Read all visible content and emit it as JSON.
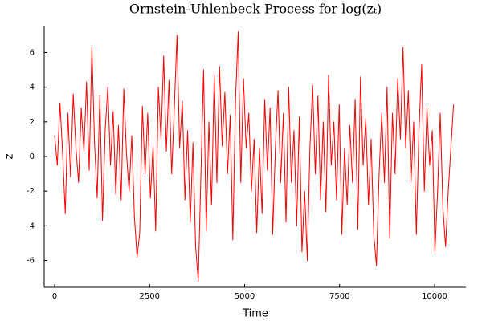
{
  "chart_data": {
    "type": "line",
    "title": "Ornstein-Uhlenbeck Process for log(zₜ)",
    "x_label": "Time",
    "y_label": "z",
    "x": [
      0,
      70,
      140,
      210,
      280,
      350,
      420,
      490,
      560,
      630,
      700,
      770,
      840,
      910,
      980,
      1050,
      1120,
      1190,
      1260,
      1330,
      1400,
      1470,
      1540,
      1610,
      1680,
      1750,
      1820,
      1890,
      1960,
      2030,
      2100,
      2170,
      2240,
      2310,
      2380,
      2450,
      2520,
      2590,
      2660,
      2730,
      2800,
      2870,
      2940,
      3010,
      3080,
      3150,
      3220,
      3290,
      3360,
      3430,
      3500,
      3570,
      3640,
      3710,
      3780,
      3850,
      3920,
      3990,
      4060,
      4130,
      4200,
      4270,
      4340,
      4410,
      4480,
      4550,
      4620,
      4690,
      4760,
      4830,
      4900,
      4970,
      5040,
      5110,
      5180,
      5250,
      5320,
      5390,
      5460,
      5530,
      5600,
      5670,
      5740,
      5810,
      5880,
      5950,
      6020,
      6090,
      6160,
      6230,
      6300,
      6370,
      6440,
      6510,
      6580,
      6650,
      6720,
      6790,
      6860,
      6930,
      7000,
      7070,
      7140,
      7210,
      7280,
      7350,
      7420,
      7490,
      7560,
      7630,
      7700,
      7770,
      7840,
      7910,
      7980,
      8050,
      8120,
      8190,
      8260,
      8330,
      8400,
      8470,
      8540,
      8610,
      8680,
      8750,
      8820,
      8890,
      8960,
      9030,
      9100,
      9170,
      9240,
      9310,
      9380,
      9450,
      9520,
      9590,
      9660,
      9730,
      9800,
      9870,
      9940,
      10010,
      10080,
      10150,
      10220,
      10290,
      10360,
      10430,
      10500
    ],
    "series": [
      {
        "name": "z",
        "color": "#ff0000",
        "values": [
          1.2,
          -0.5,
          3.1,
          0.2,
          -3.3,
          2.5,
          -1.2,
          3.6,
          0.5,
          -1.5,
          2.8,
          0.3,
          4.3,
          -0.8,
          6.3,
          0.8,
          -2.4,
          3.5,
          -3.7,
          1.5,
          4.0,
          -0.5,
          2.6,
          -2.2,
          1.8,
          -2.5,
          3.9,
          0.2,
          -2.0,
          1.2,
          -3.5,
          -5.8,
          -4.4,
          2.9,
          -1.0,
          2.5,
          -2.4,
          0.6,
          -4.3,
          4.0,
          1.0,
          5.8,
          0.3,
          4.4,
          -1.0,
          2.8,
          7.0,
          0.5,
          3.2,
          -2.5,
          1.5,
          -3.8,
          0.8,
          -5.2,
          -7.2,
          -1.0,
          5.0,
          -4.3,
          2.0,
          -2.8,
          4.7,
          -1.5,
          5.2,
          0.6,
          3.7,
          -1.0,
          2.4,
          -4.8,
          3.2,
          7.2,
          -1.5,
          4.5,
          0.5,
          2.5,
          -2.0,
          1.0,
          -4.4,
          0.5,
          -3.3,
          3.3,
          -0.8,
          2.8,
          -4.5,
          0.5,
          3.8,
          -1.5,
          2.5,
          -3.8,
          4.0,
          -1.5,
          1.5,
          -4.0,
          2.3,
          -5.5,
          -2.0,
          -6.0,
          0.5,
          4.1,
          -1.0,
          3.5,
          -2.5,
          2.0,
          -3.2,
          4.7,
          -0.5,
          2.0,
          -2.5,
          3.0,
          -4.5,
          0.5,
          -2.8,
          1.8,
          -1.5,
          3.3,
          -4.2,
          4.6,
          -0.5,
          2.2,
          -2.8,
          1.0,
          -4.5,
          -6.3,
          -1.0,
          2.5,
          -1.5,
          4.0,
          -4.7,
          2.5,
          -1.0,
          4.5,
          1.0,
          6.3,
          0.5,
          3.8,
          -1.5,
          2.0,
          -4.5,
          1.5,
          5.3,
          -2.0,
          2.8,
          -0.5,
          1.5,
          -5.5,
          -2.0,
          2.5,
          -3.0,
          -5.2,
          -2.0,
          0.5,
          3.0
        ]
      }
    ],
    "xlim": [
      -275,
      10825
    ],
    "xticks": [
      0,
      2500,
      5000,
      7500,
      10000
    ],
    "ylim": [
      -7.55,
      7.55
    ],
    "yticks": [
      -6,
      -4,
      -2,
      0,
      2,
      4,
      6
    ],
    "grid": false
  }
}
